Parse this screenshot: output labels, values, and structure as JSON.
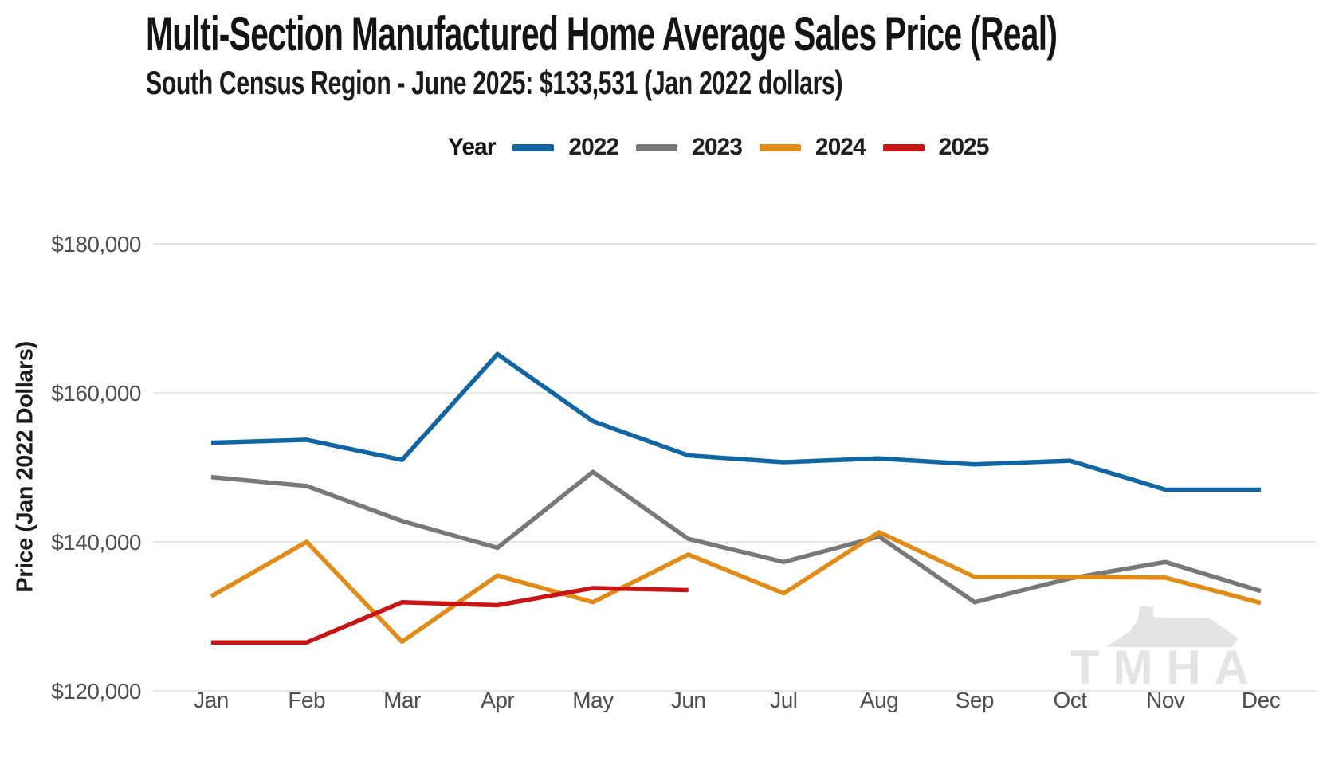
{
  "title": "Multi-Section Manufactured Home Average Sales Price (Real)",
  "subtitle": "South Census Region - June 2025: $133,531 (Jan 2022 dollars)",
  "legend": {
    "title": "Year"
  },
  "watermark": "TMHA",
  "colors": {
    "blue_2022": "#1066a2",
    "gray_2023": "#787878",
    "orange_2024": "#e28c18",
    "red_2025": "#c81414",
    "gridline": "#e7e7e7",
    "axis_text": "#4e4f51",
    "watermark_gray": "#e4e4e6"
  },
  "chart_data": {
    "type": "line",
    "title": "Multi-Section Manufactured Home Average Sales Price (Real)",
    "subtitle": "South Census Region - June 2025: $133,531 (Jan 2022 dollars)",
    "xlabel": "",
    "ylabel": "Price (Jan 2022 Dollars)",
    "x": [
      "Jan",
      "Feb",
      "Mar",
      "Apr",
      "May",
      "Jun",
      "Jul",
      "Aug",
      "Sep",
      "Oct",
      "Nov",
      "Dec"
    ],
    "ylim": [
      120000,
      180000
    ],
    "yticks": [
      {
        "value": 180000,
        "label": "$180,000"
      },
      {
        "value": 160000,
        "label": "$160,000"
      },
      {
        "value": 140000,
        "label": "$140,000"
      },
      {
        "value": 120000,
        "label": "$120,000"
      }
    ],
    "grid": "horizontal",
    "legend_position": "top",
    "series": [
      {
        "name": "2022",
        "color": "#1066a2",
        "values": [
          153300,
          153700,
          151000,
          165200,
          156200,
          151600,
          150700,
          151200,
          150400,
          150900,
          147000,
          147000
        ]
      },
      {
        "name": "2023",
        "color": "#787878",
        "values": [
          148700,
          147500,
          142800,
          139200,
          149400,
          140400,
          137300,
          140700,
          131900,
          135100,
          137300,
          133400
        ]
      },
      {
        "name": "2024",
        "color": "#e28c18",
        "values": [
          132700,
          140000,
          126600,
          135500,
          131900,
          138300,
          133100,
          141300,
          135300,
          135300,
          135200,
          131800
        ]
      },
      {
        "name": "2025",
        "color": "#c81414",
        "values": [
          126500,
          126500,
          131900,
          131500,
          133800,
          133531
        ]
      }
    ]
  }
}
